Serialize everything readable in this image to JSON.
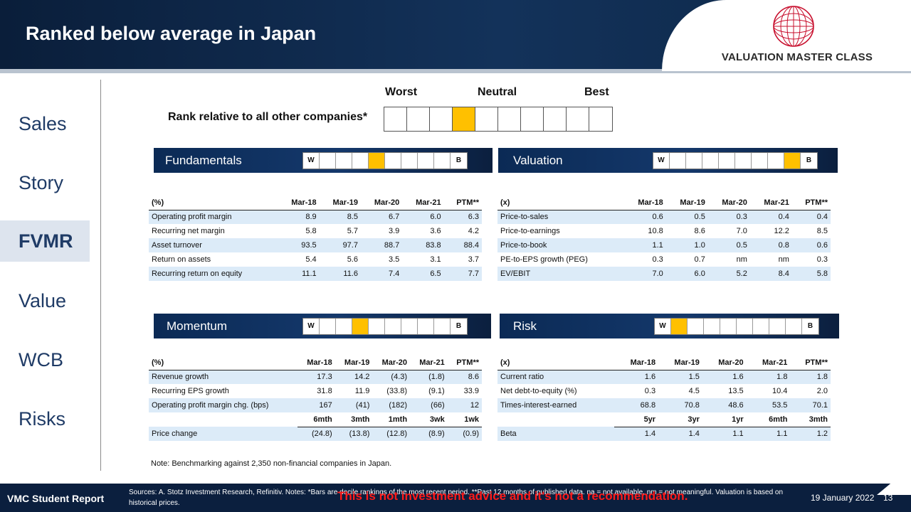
{
  "header": {
    "title": "Ranked below average in Japan",
    "logo_text": "VALUATION MASTER CLASS"
  },
  "sidebar": {
    "items": [
      {
        "label": "Sales",
        "active": false
      },
      {
        "label": "Story",
        "active": false
      },
      {
        "label": "FVMR",
        "active": true
      },
      {
        "label": "Value",
        "active": false
      },
      {
        "label": "WCB",
        "active": false
      },
      {
        "label": "Risks",
        "active": false
      }
    ]
  },
  "rank": {
    "worst": "Worst",
    "neutral": "Neutral",
    "best": "Best",
    "label": "Rank relative to all other companies*",
    "cells": 10,
    "position": 4
  },
  "sections": {
    "fundamentals": {
      "title": "Fundamentals",
      "w": "W",
      "b": "B",
      "decile": 4,
      "header": [
        "(%)",
        "Mar-18",
        "Mar-19",
        "Mar-20",
        "Mar-21",
        "PTM**"
      ],
      "rows": [
        [
          "Operating profit margin",
          "8.9",
          "8.5",
          "6.7",
          "6.0",
          "6.3"
        ],
        [
          "Recurring net margin",
          "5.8",
          "5.7",
          "3.9",
          "3.6",
          "4.2"
        ],
        [
          "Asset turnover",
          "93.5",
          "97.7",
          "88.7",
          "83.8",
          "88.4"
        ],
        [
          "Return on assets",
          "5.4",
          "5.6",
          "3.5",
          "3.1",
          "3.7"
        ],
        [
          "Recurring return on equity",
          "11.1",
          "11.6",
          "7.4",
          "6.5",
          "7.7"
        ]
      ]
    },
    "valuation": {
      "title": "Valuation",
      "w": "W",
      "b": "B",
      "decile": 8,
      "header": [
        "(x)",
        "Mar-18",
        "Mar-19",
        "Mar-20",
        "Mar-21",
        "PTM**"
      ],
      "rows": [
        [
          "Price-to-sales",
          "0.6",
          "0.5",
          "0.3",
          "0.4",
          "0.4"
        ],
        [
          "Price-to-earnings",
          "10.8",
          "8.6",
          "7.0",
          "12.2",
          "8.5"
        ],
        [
          "Price-to-book",
          "1.1",
          "1.0",
          "0.5",
          "0.8",
          "0.6"
        ],
        [
          "PE-to-EPS growth (PEG)",
          "0.3",
          "0.7",
          "nm",
          "nm",
          "0.3"
        ],
        [
          "EV/EBIT",
          "7.0",
          "6.0",
          "5.2",
          "8.4",
          "5.8"
        ]
      ]
    },
    "momentum": {
      "title": "Momentum",
      "w": "W",
      "b": "B",
      "decile": 3,
      "header": [
        "(%)",
        "Mar-18",
        "Mar-19",
        "Mar-20",
        "Mar-21",
        "PTM**"
      ],
      "rows": [
        [
          "Revenue growth",
          "17.3",
          "14.2",
          "(4.3)",
          "(1.8)",
          "8.6"
        ],
        [
          "Recurring EPS growth",
          "31.8",
          "11.9",
          "(33.8)",
          "(9.1)",
          "33.9"
        ],
        [
          "Operating profit margin chg. (bps)",
          "167",
          "(41)",
          "(182)",
          "(66)",
          "12"
        ]
      ],
      "sub_header": [
        "6mth",
        "3mth",
        "1mth",
        "3wk",
        "1wk"
      ],
      "sub_row": [
        "Price change",
        "(24.8)",
        "(13.8)",
        "(12.8)",
        "(8.9)",
        "(0.9)"
      ]
    },
    "risk": {
      "title": "Risk",
      "w": "W",
      "b": "B",
      "decile": 1,
      "header": [
        "(x)",
        "Mar-18",
        "Mar-19",
        "Mar-20",
        "Mar-21",
        "PTM**"
      ],
      "rows": [
        [
          "Current ratio",
          "1.6",
          "1.5",
          "1.6",
          "1.8",
          "1.8"
        ],
        [
          "Net debt-to-equity (%)",
          "0.3",
          "4.5",
          "13.5",
          "10.4",
          "2.0"
        ],
        [
          "Times-interest-earned",
          "68.8",
          "70.8",
          "48.6",
          "53.5",
          "70.1"
        ]
      ],
      "sub_header": [
        "5yr",
        "3yr",
        "1yr",
        "6mth",
        "3mth"
      ],
      "sub_row": [
        "Beta",
        "1.4",
        "1.4",
        "1.1",
        "1.1",
        "1.2"
      ]
    }
  },
  "note": "Note:  Benchmarking against 2,350 non-financial companies in Japan.",
  "footer": {
    "left": "VMC Student Report",
    "sources": "Sources: A. Stotz Investment Research, Refinitiv. Notes: *Bars are decile rankings of the most recent period. **Past 12 months of published data. na = not available, nm = not meaningful. Valuation is based on historical prices.",
    "warning": "This is not investment advice and it's not a recommendation.",
    "date": "19 January 2022",
    "page": "13"
  },
  "colors": {
    "navy": "#0b1f3e",
    "highlight": "#ffc000",
    "shade": "#dcebf8",
    "sidebar_text": "#1f3b66"
  }
}
